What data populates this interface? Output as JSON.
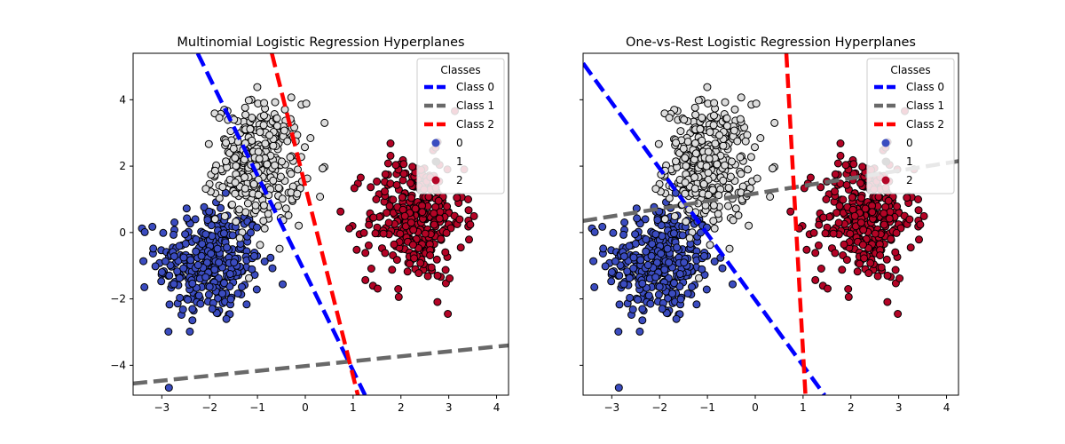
{
  "chart_data": [
    {
      "type": "scatter",
      "title": "Multinomial Logistic Regression Hyperplanes",
      "xlim": [
        -3.6,
        4.25
      ],
      "ylim": [
        -4.9,
        5.4
      ],
      "xticks": [
        -3,
        -2,
        -1,
        0,
        1,
        2,
        3,
        4
      ],
      "yticks": [
        -4,
        -2,
        0,
        2,
        4
      ],
      "legend": {
        "title": "Classes",
        "position": "top-right",
        "entries": [
          "Class 0",
          "Class 1",
          "Class 2",
          "0",
          "1",
          "2"
        ]
      },
      "hyperplanes": [
        {
          "name": "Class 0",
          "color": "#0000ff",
          "points": [
            [
              -2.25,
              5.4
            ],
            [
              1.25,
              -4.9
            ]
          ]
        },
        {
          "name": "Class 1",
          "color": "#696969",
          "points": [
            [
              -3.6,
              -4.55
            ],
            [
              4.25,
              -3.4
            ]
          ]
        },
        {
          "name": "Class 2",
          "color": "#ff0000",
          "points": [
            [
              -0.7,
              5.4
            ],
            [
              1.1,
              -4.9
            ]
          ]
        }
      ]
    },
    {
      "type": "scatter",
      "title": "One-vs-Rest Logistic Regression Hyperplanes",
      "xlim": [
        -3.6,
        4.25
      ],
      "ylim": [
        -4.9,
        5.4
      ],
      "xticks": [
        -3,
        -2,
        -1,
        0,
        1,
        2,
        3,
        4
      ],
      "yticks": [
        -4,
        -2,
        0,
        2,
        4
      ],
      "legend": {
        "title": "Classes",
        "position": "top-right",
        "entries": [
          "Class 0",
          "Class 1",
          "Class 2",
          "0",
          "1",
          "2"
        ]
      },
      "hyperplanes": [
        {
          "name": "Class 0",
          "color": "#0000ff",
          "points": [
            [
              -3.6,
              5.1
            ],
            [
              1.45,
              -4.9
            ]
          ]
        },
        {
          "name": "Class 1",
          "color": "#696969",
          "points": [
            [
              -3.6,
              0.35
            ],
            [
              4.25,
              2.15
            ]
          ]
        },
        {
          "name": "Class 2",
          "color": "#ff0000",
          "points": [
            [
              0.65,
              5.4
            ],
            [
              1.05,
              -4.9
            ]
          ]
        }
      ]
    }
  ],
  "clusters": [
    {
      "label": "0",
      "color": "#3b4cc0",
      "center": [
        -2.0,
        -0.9
      ],
      "spread": [
        0.55,
        0.9
      ],
      "count": 330
    },
    {
      "label": "1",
      "color": "#dddddd",
      "center": [
        -0.95,
        2.1
      ],
      "spread": [
        0.45,
        0.9
      ],
      "count": 330
    },
    {
      "label": "2",
      "color": "#b40426",
      "center": [
        2.3,
        0.4
      ],
      "spread": [
        0.5,
        0.95
      ],
      "count": 330
    }
  ]
}
